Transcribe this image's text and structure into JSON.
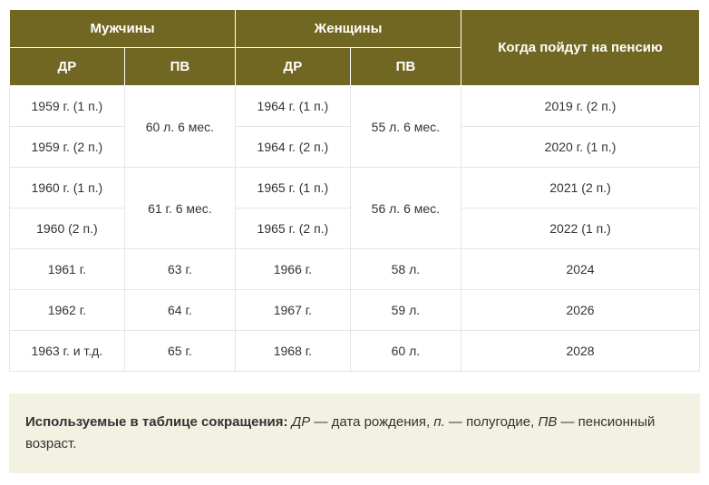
{
  "table": {
    "header_bg": "#716722",
    "header_color": "#ffffff",
    "cell_border": "#e5e5e5",
    "cell_color": "#333333",
    "header_top": {
      "men": "Мужчины",
      "women": "Женщины",
      "when": "Когда пойдут на пенсию"
    },
    "header_sub": {
      "dr1": "ДР",
      "pv1": "ПВ",
      "dr2": "ДР",
      "pv2": "ПВ"
    },
    "rows": [
      {
        "mdr": "1959 г. (1 п.)",
        "mpv": "60 л. 6 мес.",
        "wdr": "1964 г. (1 п.)",
        "wpv": "55 л. 6 мес.",
        "when": "2019 г. (2 п.)"
      },
      {
        "mdr": "1959 г. (2 п.)",
        "mpv": null,
        "wdr": "1964 г. (2 п.)",
        "wpv": null,
        "when": "2020 г. (1 п.)"
      },
      {
        "mdr": "1960 г. (1 п.)",
        "mpv": "61 г. 6 мес.",
        "wdr": "1965 г. (1 п.)",
        "wpv": "56 л. 6 мес.",
        "when": "2021 (2 п.)"
      },
      {
        "mdr": "1960 (2 п.)",
        "mpv": null,
        "wdr": "1965 г. (2 п.)",
        "wpv": null,
        "when": "2022 (1 п.)"
      },
      {
        "mdr": "1961 г.",
        "mpv": "63 г.",
        "wdr": "1966 г.",
        "wpv": "58 л.",
        "when": "2024"
      },
      {
        "mdr": "1962 г.",
        "mpv": "64 г.",
        "wdr": "1967 г.",
        "wpv": "59 л.",
        "when": "2026"
      },
      {
        "mdr": "1963 г. и т.д.",
        "mpv": "65 г.",
        "wdr": "1968 г.",
        "wpv": "60 л.",
        "when": "2028"
      }
    ]
  },
  "note": {
    "bg": "#f3f1e1",
    "prefix_bold": "Используемые в таблице сокращения:",
    "dr_abbr": "ДР",
    "dr_text": " — дата рождения, ",
    "p_abbr": "п.",
    "p_text": " — полугодие, ",
    "pv_abbr": "ПВ",
    "pv_text": " — пенсионный возраст."
  }
}
